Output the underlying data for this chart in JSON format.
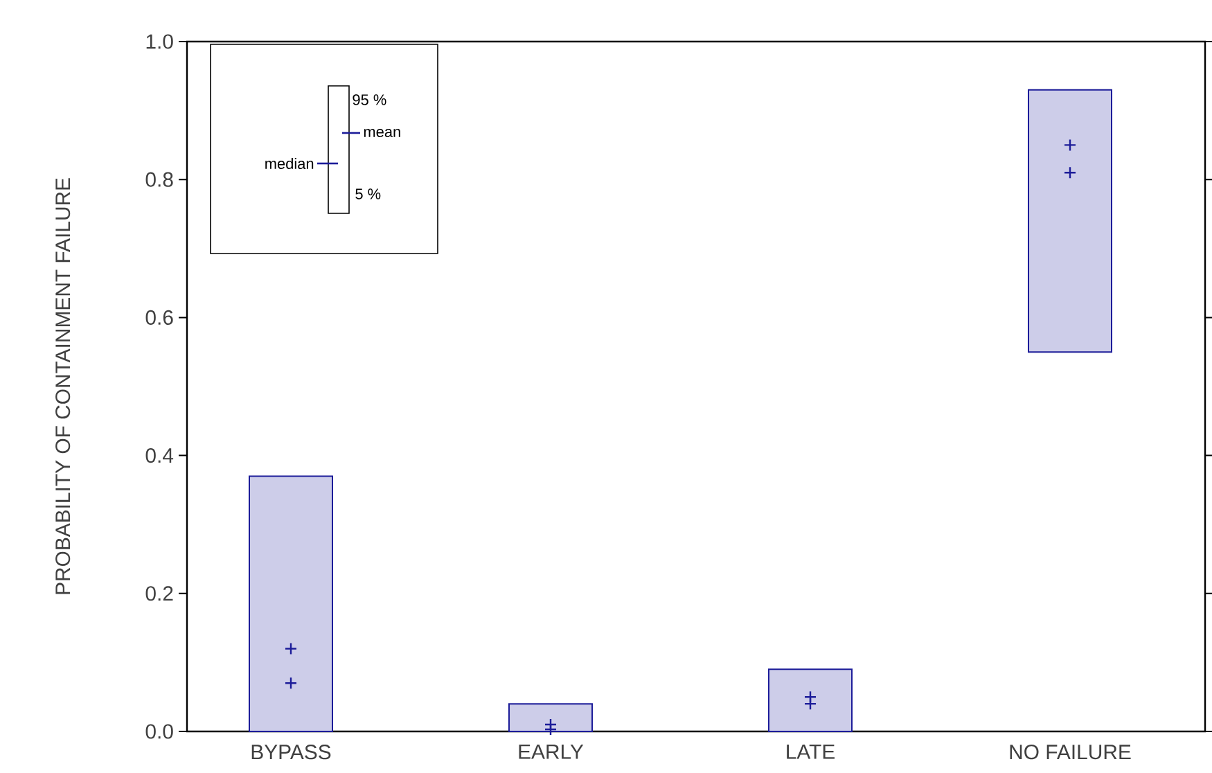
{
  "chart_data": {
    "type": "bar",
    "ylabel": "PROBABILITY OF CONTAINMENT FAILURE",
    "categories": [
      "BYPASS",
      "EARLY",
      "LATE",
      "NO FAILURE"
    ],
    "ylim": [
      0,
      1
    ],
    "yticks": [
      {
        "value": 0,
        "label": "0.0"
      },
      {
        "value": 0.2,
        "label": "0.2"
      },
      {
        "value": 0.4,
        "label": "0.4"
      },
      {
        "value": 0.6,
        "label": "0.6"
      },
      {
        "value": 0.8,
        "label": "0.8"
      },
      {
        "value": 1,
        "label": "1.0"
      }
    ],
    "legend": "top left",
    "annotations": [
      "95 %",
      "5 %"
    ],
    "series": [
      {
        "type": "bar",
        "color": "#1c1c99",
        "base": [
          0,
          0,
          0,
          0.55
        ],
        "values": [
          0.37,
          0.04,
          0.09,
          0.38
        ]
      },
      {
        "type": "scatter",
        "name": "median",
        "color": "#1c1c99",
        "values": [
          0.07,
          0.003,
          0.04,
          0.85
        ]
      },
      {
        "type": "scatter",
        "name": "mean",
        "color": "#1c1c99",
        "values": [
          0.12,
          0.01,
          0.05,
          0.81
        ]
      }
    ]
  }
}
